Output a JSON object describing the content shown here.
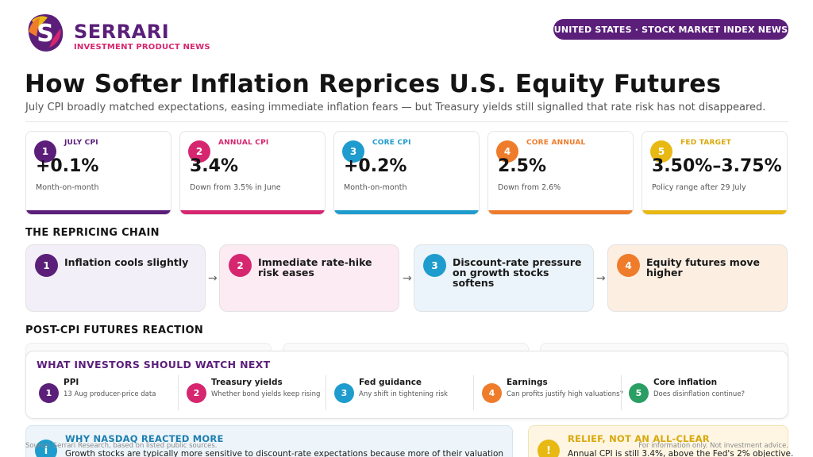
{
  "header": {
    "brand": "SERRARI",
    "brand_sub": "INVESTMENT PRODUCT NEWS",
    "pill": "UNITED STATES · STOCK MARKET INDEX NEWS",
    "title": "How Softer Inflation Reprices U.S. Equity Futures",
    "subtitle": "July CPI broadly matched expectations, easing immediate inflation fears — but Treasury yields still signalled that rate risk has not disappeared."
  },
  "colors": {
    "purple": "#5b1f7a",
    "pink": "#d6266f",
    "blue": "#1e9ccd",
    "orange": "#ee7c2b",
    "yellow": "#e8b813",
    "green": "#2a9e63"
  },
  "stats": [
    {
      "num": "1",
      "label": "JULY CPI",
      "value": "+0.1%",
      "note": "Month-on-month"
    },
    {
      "num": "2",
      "label": "ANNUAL CPI",
      "value": "3.4%",
      "note": "Down from 3.5% in June"
    },
    {
      "num": "3",
      "label": "CORE CPI",
      "value": "+0.2%",
      "note": "Month-on-month"
    },
    {
      "num": "4",
      "label": "CORE ANNUAL",
      "value": "2.5%",
      "note": "Down from 2.6%"
    },
    {
      "num": "5",
      "label": "FED TARGET",
      "value": "3.50%–3.75%",
      "note": "Policy range after 29 July"
    }
  ],
  "chain": {
    "heading": "THE REPRICING CHAIN",
    "arrow": "→",
    "steps": [
      {
        "num": "1",
        "text": "Inflation cools slightly"
      },
      {
        "num": "2",
        "text": "Immediate rate-hike risk eases"
      },
      {
        "num": "3",
        "text": "Discount-rate pressure on growth stocks softens"
      },
      {
        "num": "4",
        "text": "Equity futures move higher"
      }
    ]
  },
  "reaction": {
    "heading": "POST-CPI FUTURES REACTION"
  },
  "watch": {
    "title": "WHAT INVESTORS SHOULD WATCH NEXT",
    "items": [
      {
        "num": "1",
        "name": "PPI",
        "desc": "13 Aug producer-price data"
      },
      {
        "num": "2",
        "name": "Treasury yields",
        "desc": "Whether bond yields keep rising"
      },
      {
        "num": "3",
        "name": "Fed guidance",
        "desc": "Any shift in tightening risk"
      },
      {
        "num": "4",
        "name": "Earnings",
        "desc": "Can profits justify high valuations?"
      },
      {
        "num": "5",
        "name": "Core inflation",
        "desc": "Does disinflation continue?"
      }
    ]
  },
  "bottom": {
    "left_icon": "i",
    "left_title": "WHY NASDAQ REACTED MORE",
    "left_text": "Growth stocks are typically more sensitive to discount-rate expectations because more of their valuation",
    "right_icon": "!",
    "right_title": "RELIEF, NOT AN ALL-CLEAR",
    "right_text": "Annual CPI is still 3.4%, above the Fed's 2% objective."
  },
  "footer": {
    "left": "Source: Serrari Research, based on listed public sources.",
    "right": "For information only. Not investment advice."
  }
}
